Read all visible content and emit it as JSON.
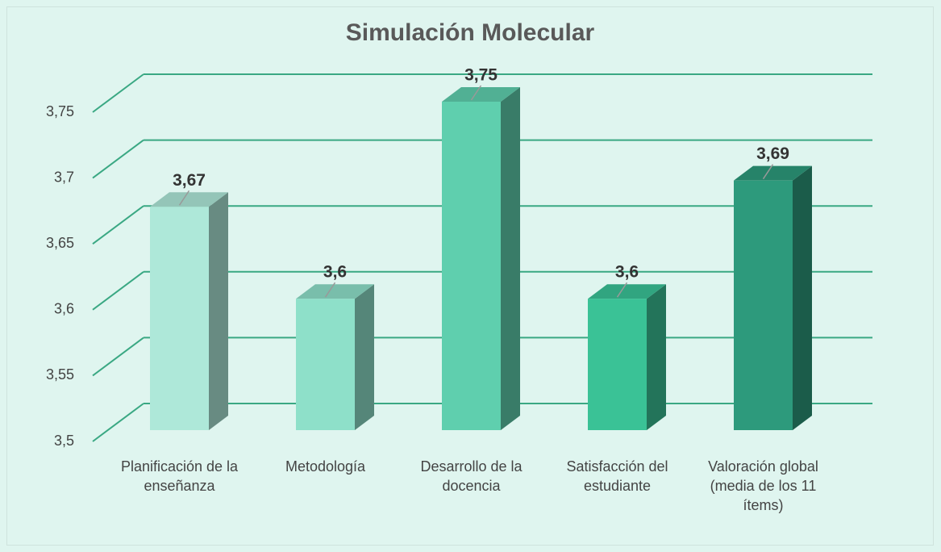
{
  "chart_data": {
    "type": "bar3d",
    "title": "Simulación Molecular",
    "categories": [
      "Planificación de la enseñanza",
      "Metodología",
      "Desarrollo de la docencia",
      "Satisfacción del estudiante",
      "Valoración global (media de los 11 ítems)"
    ],
    "values": [
      3.67,
      3.6,
      3.75,
      3.6,
      3.69
    ],
    "value_labels": [
      "3,67",
      "3,6",
      "3,75",
      "3,6",
      "3,69"
    ],
    "colors": [
      "#aee8d9",
      "#8ee0c9",
      "#5fcfae",
      "#3ac296",
      "#2d9a7c"
    ],
    "ylim": [
      3.5,
      3.75
    ],
    "yticks": [
      {
        "value": 3.5,
        "label": "3,5"
      },
      {
        "value": 3.55,
        "label": "3,55"
      },
      {
        "value": 3.6,
        "label": "3,6"
      },
      {
        "value": 3.65,
        "label": "3,65"
      },
      {
        "value": 3.7,
        "label": "3,7"
      },
      {
        "value": 3.75,
        "label": "3,75"
      }
    ],
    "grid": true
  }
}
